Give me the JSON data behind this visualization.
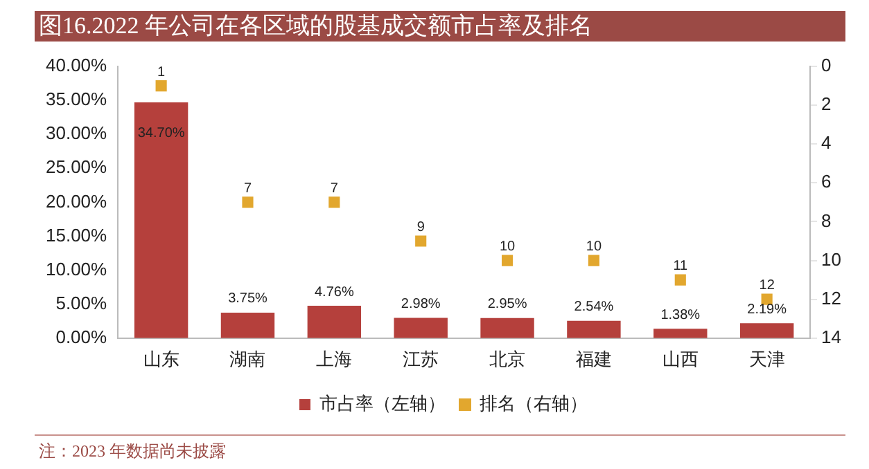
{
  "chart_data": {
    "type": "bar",
    "title": "图16.2022 年公司在各区域的股基成交额市占率及排名",
    "categories": [
      "山东",
      "湖南",
      "上海",
      "江苏",
      "北京",
      "福建",
      "山西",
      "天津"
    ],
    "series": [
      {
        "name": "市占率（左轴）",
        "color": "#b5403c",
        "values": [
          34.7,
          3.75,
          4.76,
          2.98,
          2.95,
          2.54,
          1.38,
          2.19
        ],
        "value_labels": [
          "34.70%",
          "3.75%",
          "4.76%",
          "2.98%",
          "2.95%",
          "2.54%",
          "1.38%",
          "2.19%"
        ]
      },
      {
        "name": "排名（右轴）",
        "type": "scatter",
        "axis": "y2",
        "color": "#e2a72e",
        "marker": "square",
        "values": [
          1,
          7,
          7,
          9,
          10,
          10,
          11,
          12
        ],
        "value_labels": [
          "1",
          "7",
          "7",
          "9",
          "10",
          "10",
          "11",
          "12"
        ]
      }
    ],
    "ylim": [
      0,
      40
    ],
    "yticks": [
      {
        "value": 0,
        "label": "0.00%"
      },
      {
        "value": 5,
        "label": "5.00%"
      },
      {
        "value": 10,
        "label": "10.00%"
      },
      {
        "value": 15,
        "label": "15.00%"
      },
      {
        "value": 20,
        "label": "20.00%"
      },
      {
        "value": 25,
        "label": "25.00%"
      },
      {
        "value": 30,
        "label": "30.00%"
      },
      {
        "value": 35,
        "label": "35.00%"
      },
      {
        "value": 40,
        "label": "40.00%"
      }
    ],
    "y2lim": [
      14,
      0
    ],
    "y2ticks": [
      0,
      2,
      4,
      6,
      8,
      10,
      12,
      14
    ],
    "grid": false,
    "legend": "bottom",
    "annotations": [
      "注：2023 年数据尚未披露"
    ]
  }
}
